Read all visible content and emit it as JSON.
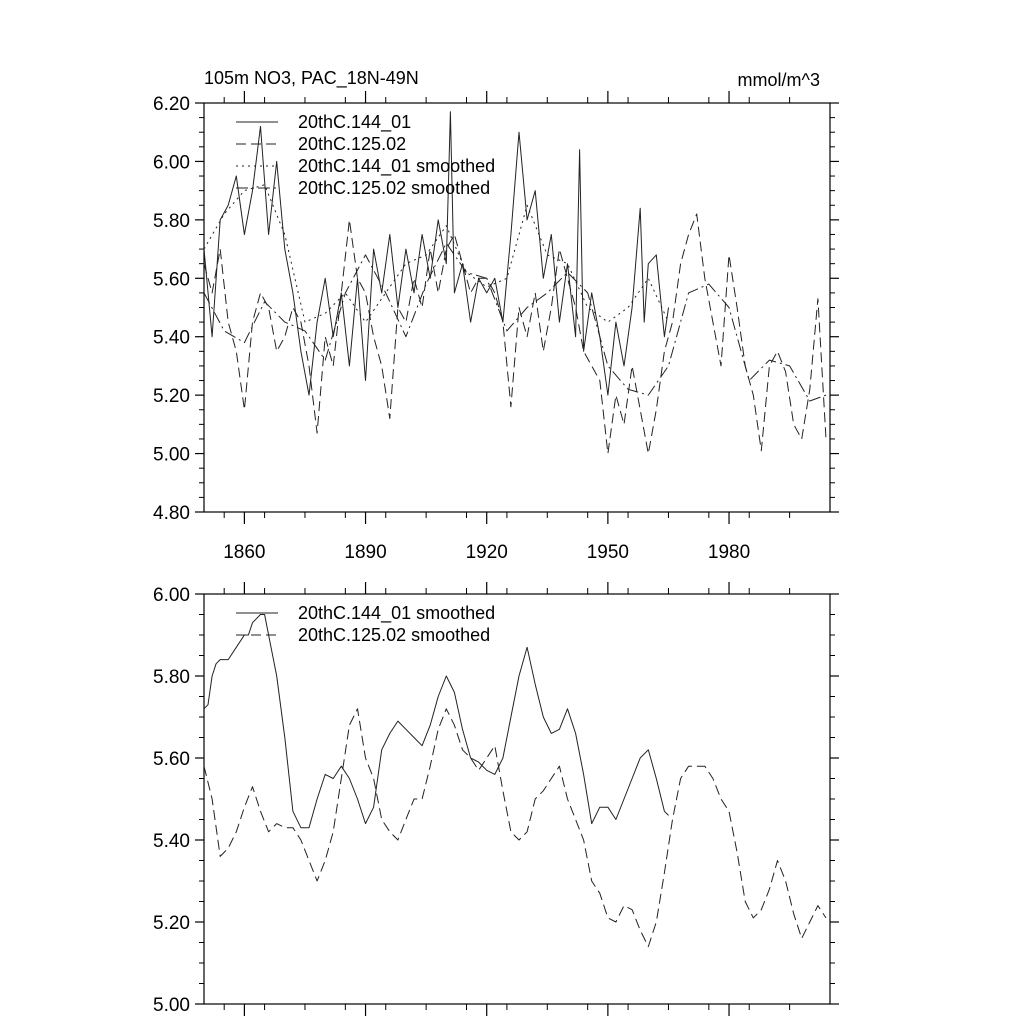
{
  "chart_data": [
    {
      "type": "line",
      "title": "105m NO3, PAC_18N-49N",
      "units": "mmol/m^3",
      "xlim": [
        1850,
        2005
      ],
      "ylim": [
        4.8,
        6.2
      ],
      "y_ticks": [
        4.8,
        5.0,
        5.2,
        5.4,
        5.6,
        5.8,
        6.0,
        6.2
      ],
      "y_tick_labels": [
        "4.80",
        "5.00",
        "5.20",
        "5.40",
        "5.60",
        "5.80",
        "6.00",
        "6.20"
      ],
      "x_ticks": [
        1860,
        1890,
        1920,
        1950,
        1980
      ],
      "x_tick_labels": [
        "1860",
        "1890",
        "1920",
        "1950",
        "1980"
      ],
      "legend": [
        "20thC.144_01",
        "20thC.125.02",
        "20thC.144_01 smoothed",
        "20thC.125.02 smoothed"
      ],
      "series": [
        {
          "name": "20thC.144_01",
          "style": "solid",
          "x": [
            1850,
            1852,
            1854,
            1856,
            1858,
            1860,
            1862,
            1864,
            1866,
            1868,
            1870,
            1872,
            1874,
            1876,
            1878,
            1880,
            1882,
            1884,
            1886,
            1888,
            1890,
            1892,
            1894,
            1896,
            1898,
            1900,
            1902,
            1904,
            1906,
            1908,
            1910,
            1911,
            1912,
            1914,
            1916,
            1918,
            1920,
            1922,
            1924,
            1926,
            1928,
            1930,
            1932,
            1934,
            1936,
            1938,
            1940,
            1942,
            1943,
            1944,
            1946,
            1948,
            1950,
            1952,
            1954,
            1956,
            1958,
            1959,
            1960,
            1962,
            1964,
            1965
          ],
          "values": [
            5.7,
            5.4,
            5.8,
            5.85,
            5.95,
            5.75,
            5.9,
            6.12,
            5.75,
            6.0,
            5.7,
            5.55,
            5.35,
            5.2,
            5.45,
            5.6,
            5.4,
            5.55,
            5.3,
            5.6,
            5.25,
            5.7,
            5.55,
            5.75,
            5.5,
            5.7,
            5.55,
            5.75,
            5.6,
            5.8,
            5.65,
            6.17,
            5.55,
            5.65,
            5.45,
            5.6,
            5.55,
            5.6,
            5.45,
            5.75,
            6.1,
            5.8,
            5.9,
            5.6,
            5.75,
            5.45,
            5.65,
            5.4,
            6.04,
            5.35,
            5.55,
            5.4,
            5.2,
            5.45,
            5.3,
            5.5,
            5.84,
            5.45,
            5.65,
            5.68,
            5.4,
            5.5
          ]
        },
        {
          "name": "20thC.125.02",
          "style": "dashed",
          "x": [
            1850,
            1852,
            1854,
            1856,
            1858,
            1860,
            1862,
            1864,
            1866,
            1868,
            1870,
            1872,
            1874,
            1876,
            1878,
            1880,
            1882,
            1884,
            1886,
            1888,
            1890,
            1892,
            1894,
            1896,
            1898,
            1900,
            1902,
            1904,
            1906,
            1908,
            1910,
            1912,
            1914,
            1916,
            1918,
            1920,
            1922,
            1924,
            1926,
            1928,
            1930,
            1932,
            1934,
            1936,
            1938,
            1940,
            1942,
            1944,
            1946,
            1948,
            1950,
            1952,
            1954,
            1956,
            1958,
            1960,
            1962,
            1964,
            1966,
            1968,
            1970,
            1972,
            1974,
            1976,
            1978,
            1980,
            1982,
            1984,
            1986,
            1988,
            1990,
            1992,
            1994,
            1996,
            1998,
            2000,
            2002,
            2004
          ],
          "values": [
            5.65,
            5.55,
            5.7,
            5.45,
            5.35,
            5.15,
            5.45,
            5.55,
            5.5,
            5.35,
            5.4,
            5.5,
            5.45,
            5.3,
            5.07,
            5.4,
            5.3,
            5.55,
            5.8,
            5.6,
            5.55,
            5.4,
            5.3,
            5.12,
            5.5,
            5.45,
            5.6,
            5.5,
            5.7,
            5.55,
            5.7,
            5.75,
            5.65,
            5.55,
            5.6,
            5.6,
            5.55,
            5.45,
            5.16,
            5.5,
            5.4,
            5.55,
            5.35,
            5.5,
            5.7,
            5.6,
            5.5,
            5.35,
            5.3,
            5.25,
            5.0,
            5.2,
            5.1,
            5.3,
            5.15,
            5.0,
            5.15,
            5.35,
            5.45,
            5.65,
            5.75,
            5.82,
            5.6,
            5.45,
            5.3,
            5.68,
            5.5,
            5.3,
            5.2,
            5.01,
            5.3,
            5.35,
            5.28,
            5.1,
            5.05,
            5.22,
            5.53,
            5.05
          ]
        },
        {
          "name": "20thC.144_01 smoothed",
          "style": "dotted",
          "x": [
            1850,
            1855,
            1860,
            1865,
            1870,
            1875,
            1880,
            1885,
            1890,
            1895,
            1900,
            1905,
            1910,
            1915,
            1920,
            1925,
            1930,
            1935,
            1940,
            1945,
            1950,
            1955,
            1960,
            1965
          ],
          "values": [
            5.7,
            5.82,
            5.9,
            5.92,
            5.75,
            5.45,
            5.48,
            5.55,
            5.45,
            5.55,
            5.65,
            5.68,
            5.78,
            5.62,
            5.57,
            5.6,
            5.85,
            5.68,
            5.65,
            5.5,
            5.45,
            5.5,
            5.6,
            5.45
          ]
        },
        {
          "name": "20thC.125.02 smoothed",
          "style": "dashdot",
          "x": [
            1850,
            1855,
            1860,
            1865,
            1870,
            1875,
            1880,
            1885,
            1890,
            1895,
            1900,
            1905,
            1910,
            1915,
            1920,
            1925,
            1930,
            1935,
            1940,
            1945,
            1950,
            1955,
            1960,
            1965,
            1970,
            1975,
            1980,
            1985,
            1990,
            1995,
            2000,
            2004
          ],
          "values": [
            5.55,
            5.42,
            5.38,
            5.52,
            5.45,
            5.42,
            5.32,
            5.55,
            5.68,
            5.55,
            5.4,
            5.58,
            5.72,
            5.62,
            5.6,
            5.42,
            5.5,
            5.55,
            5.62,
            5.55,
            5.3,
            5.22,
            5.2,
            5.3,
            5.55,
            5.58,
            5.5,
            5.25,
            5.32,
            5.3,
            5.18,
            5.2
          ]
        }
      ]
    },
    {
      "type": "line",
      "title": "",
      "xlim": [
        1850,
        2005
      ],
      "ylim": [
        5.0,
        6.0
      ],
      "y_ticks": [
        5.0,
        5.2,
        5.4,
        5.6,
        5.8,
        6.0
      ],
      "y_tick_labels": [
        "5.00",
        "5.20",
        "5.40",
        "5.60",
        "5.80",
        "6.00"
      ],
      "x_ticks": [
        1860,
        1890,
        1920,
        1950,
        1980
      ],
      "x_tick_labels": [],
      "legend": [
        "20thC.144_01 smoothed",
        "20thC.125.02 smoothed"
      ],
      "series": [
        {
          "name": "20thC.144_01 smoothed",
          "style": "solid",
          "x": [
            1850,
            1851,
            1852,
            1853,
            1854,
            1856,
            1858,
            1860,
            1861,
            1862,
            1864,
            1865,
            1866,
            1868,
            1870,
            1872,
            1874,
            1876,
            1878,
            1880,
            1882,
            1884,
            1886,
            1888,
            1890,
            1892,
            1894,
            1896,
            1898,
            1900,
            1902,
            1904,
            1906,
            1908,
            1910,
            1912,
            1914,
            1916,
            1918,
            1920,
            1922,
            1924,
            1926,
            1928,
            1930,
            1932,
            1934,
            1936,
            1938,
            1940,
            1942,
            1944,
            1946,
            1948,
            1950,
            1952,
            1954,
            1956,
            1958,
            1960,
            1962,
            1964,
            1965
          ],
          "values": [
            5.72,
            5.73,
            5.8,
            5.83,
            5.84,
            5.84,
            5.87,
            5.9,
            5.9,
            5.93,
            5.95,
            5.95,
            5.9,
            5.8,
            5.65,
            5.47,
            5.43,
            5.43,
            5.5,
            5.56,
            5.55,
            5.58,
            5.55,
            5.5,
            5.44,
            5.48,
            5.62,
            5.66,
            5.69,
            5.67,
            5.65,
            5.63,
            5.68,
            5.75,
            5.8,
            5.76,
            5.67,
            5.6,
            5.59,
            5.57,
            5.56,
            5.6,
            5.7,
            5.8,
            5.87,
            5.78,
            5.7,
            5.66,
            5.67,
            5.72,
            5.66,
            5.56,
            5.44,
            5.48,
            5.48,
            5.45,
            5.5,
            5.55,
            5.6,
            5.62,
            5.55,
            5.47,
            5.46
          ]
        },
        {
          "name": "20thC.125.02 smoothed",
          "style": "dashed",
          "x": [
            1850,
            1852,
            1854,
            1856,
            1858,
            1860,
            1862,
            1864,
            1866,
            1868,
            1870,
            1872,
            1874,
            1876,
            1878,
            1880,
            1882,
            1884,
            1886,
            1888,
            1890,
            1892,
            1894,
            1896,
            1898,
            1900,
            1902,
            1904,
            1906,
            1908,
            1910,
            1912,
            1914,
            1916,
            1918,
            1920,
            1922,
            1924,
            1926,
            1928,
            1930,
            1932,
            1934,
            1936,
            1938,
            1940,
            1942,
            1944,
            1946,
            1948,
            1950,
            1952,
            1954,
            1956,
            1958,
            1960,
            1962,
            1964,
            1966,
            1968,
            1970,
            1972,
            1974,
            1976,
            1978,
            1980,
            1982,
            1984,
            1986,
            1988,
            1990,
            1992,
            1994,
            1996,
            1998,
            2000,
            2002,
            2004
          ],
          "values": [
            5.58,
            5.5,
            5.36,
            5.38,
            5.42,
            5.48,
            5.53,
            5.47,
            5.42,
            5.44,
            5.43,
            5.43,
            5.4,
            5.35,
            5.3,
            5.35,
            5.42,
            5.55,
            5.68,
            5.72,
            5.6,
            5.55,
            5.45,
            5.42,
            5.4,
            5.45,
            5.5,
            5.5,
            5.58,
            5.67,
            5.72,
            5.68,
            5.62,
            5.6,
            5.57,
            5.6,
            5.63,
            5.52,
            5.42,
            5.4,
            5.42,
            5.5,
            5.52,
            5.55,
            5.58,
            5.5,
            5.45,
            5.4,
            5.3,
            5.27,
            5.21,
            5.2,
            5.24,
            5.23,
            5.18,
            5.14,
            5.2,
            5.32,
            5.45,
            5.55,
            5.58,
            5.58,
            5.58,
            5.55,
            5.5,
            5.47,
            5.37,
            5.25,
            5.21,
            5.23,
            5.28,
            5.35,
            5.3,
            5.22,
            5.16,
            5.2,
            5.24,
            5.21
          ]
        }
      ]
    }
  ]
}
